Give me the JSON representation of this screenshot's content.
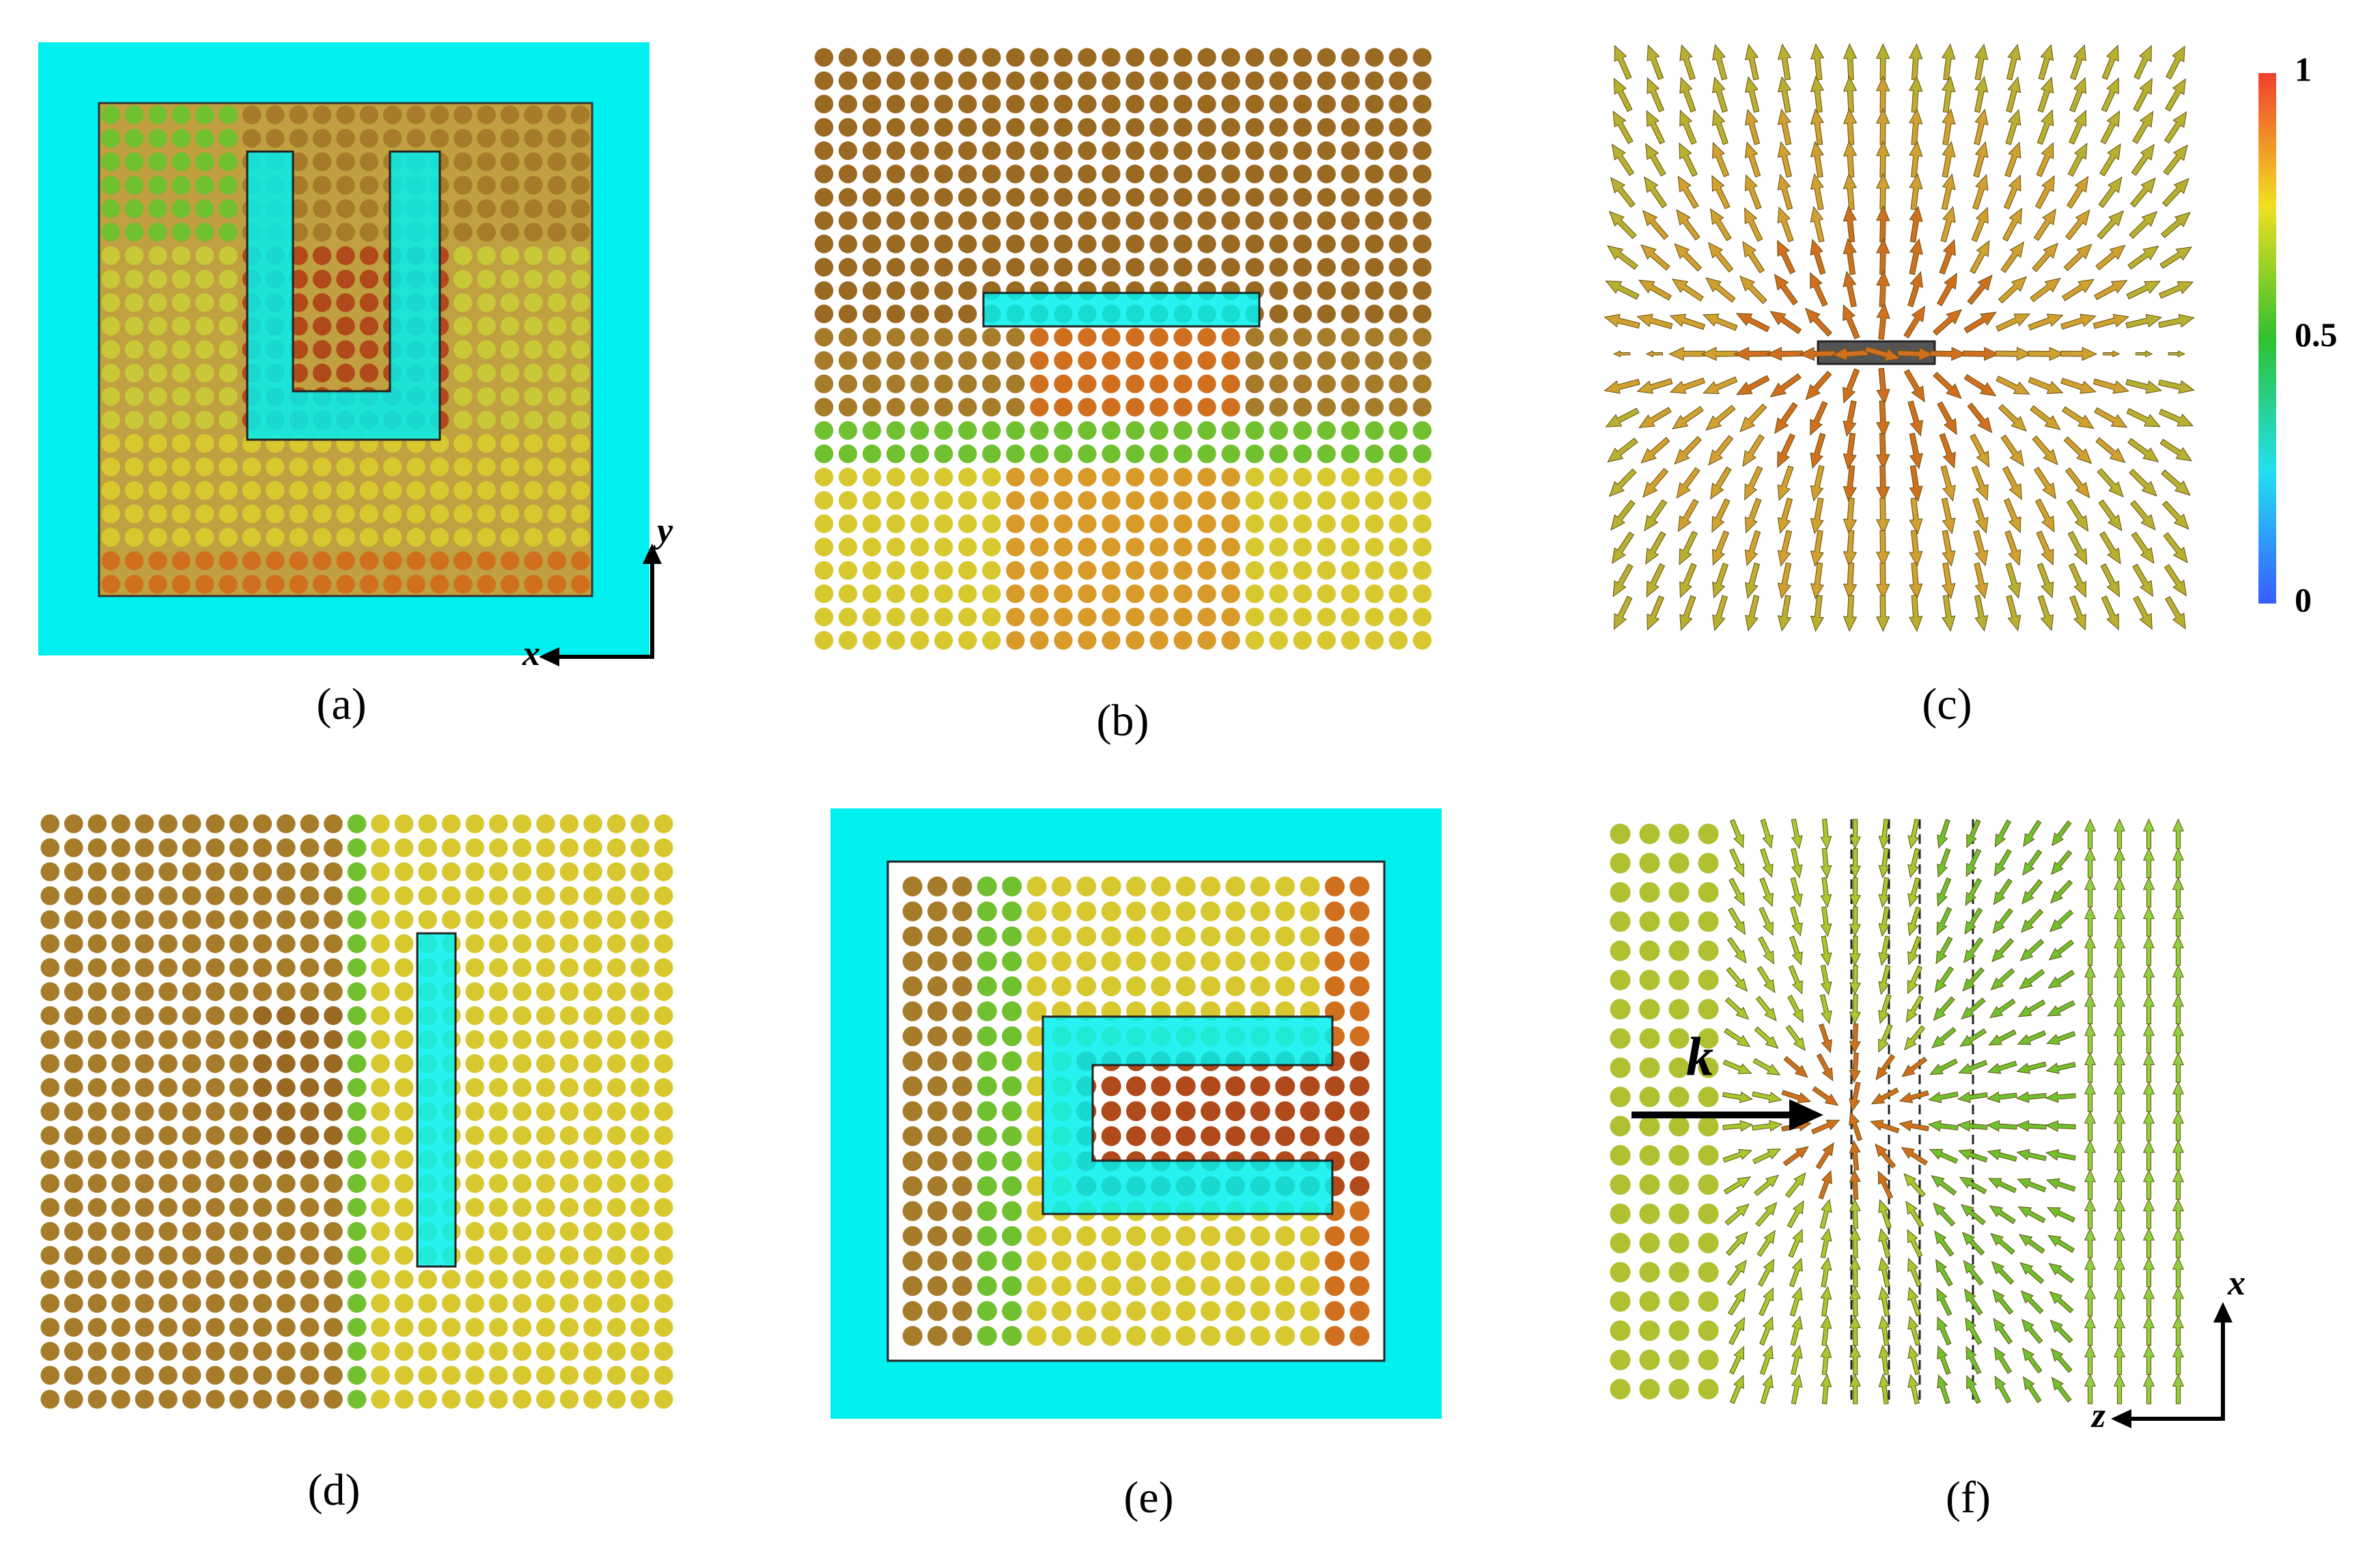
{
  "panels": [
    {
      "label": "(a)"
    },
    {
      "label": "(b)"
    },
    {
      "label": "(c)"
    },
    {
      "label": "(d)"
    },
    {
      "label": "(e)"
    },
    {
      "label": "(f)"
    }
  ],
  "colorbar": {
    "lim": [
      0,
      1
    ],
    "ticks": [
      0,
      0.5,
      1
    ]
  },
  "axes_a": {
    "horizontal": "x",
    "vertical": "y"
  },
  "axes_f": {
    "horizontal": "z",
    "vertical": "x"
  },
  "wave_vector": "k"
}
